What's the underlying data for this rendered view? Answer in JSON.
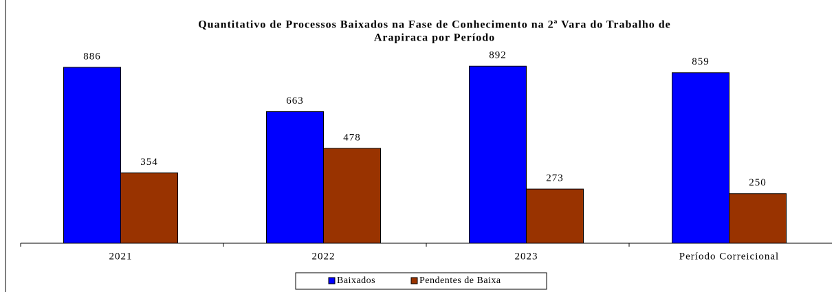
{
  "chart_data": {
    "type": "bar",
    "title": [
      "Quantitativo de Processos Baixados na Fase de Conhecimento na 2ª Vara do Trabalho de",
      "Arapiraca por Período"
    ],
    "categories": [
      "2021",
      "2022",
      "2023",
      "Período Correicional"
    ],
    "series": [
      {
        "name": "Baixados",
        "color": "#0000ff",
        "values": [
          886,
          663,
          892,
          859
        ]
      },
      {
        "name": "Pendentes de Baixa",
        "color": "#993300",
        "values": [
          354,
          478,
          273,
          250
        ]
      }
    ]
  }
}
